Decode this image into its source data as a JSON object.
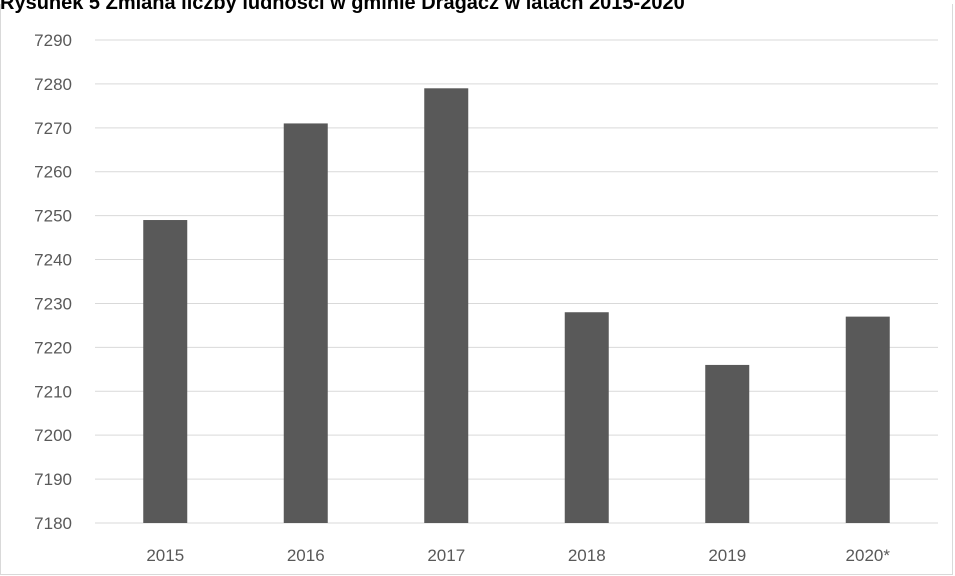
{
  "chart_data": {
    "type": "bar",
    "title": "Rysunek 5 Zmiana liczby ludności w gminie Dragacz w latach 2015-2020",
    "xlabel": "",
    "ylabel": "",
    "categories": [
      "2015",
      "2016",
      "2017",
      "2018",
      "2019",
      "2020*"
    ],
    "values": [
      7249,
      7271,
      7279,
      7228,
      7216,
      7227
    ],
    "ylim": [
      7180,
      7290
    ],
    "yticks": [
      7180,
      7190,
      7200,
      7210,
      7220,
      7230,
      7240,
      7250,
      7260,
      7270,
      7280,
      7290
    ],
    "grid": true,
    "legend": "none",
    "bar_color": "#595959",
    "grid_color": "#d9d9d9",
    "text_color": "#595959"
  }
}
